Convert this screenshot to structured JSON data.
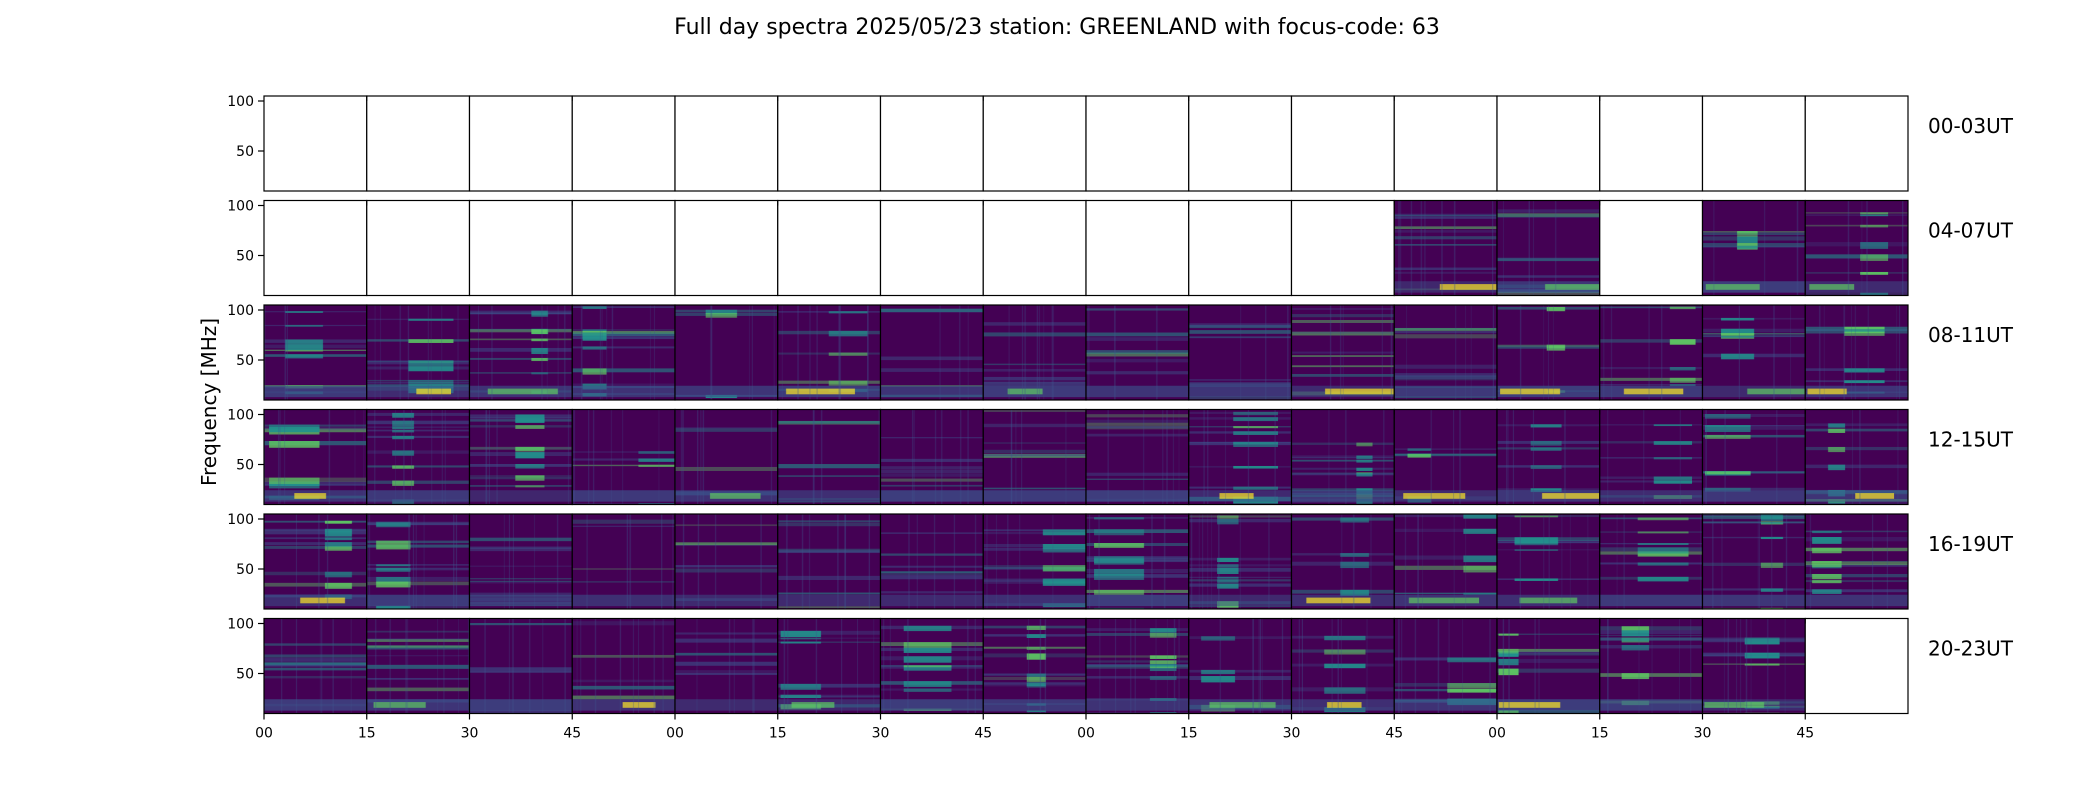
{
  "chart_data": {
    "type": "heatmap",
    "title": "Full day spectra 2025/05/23 station: GREENLAND with focus-code: 63",
    "ylabel": "Frequency [MHz]",
    "y_ticks": [
      50,
      100
    ],
    "ylim": [
      10,
      105
    ],
    "x_tick_labels": [
      "00",
      "15",
      "30",
      "45",
      "00",
      "15",
      "30",
      "45",
      "00",
      "15",
      "30",
      "45",
      "00",
      "15",
      "30",
      "45"
    ],
    "rows": [
      {
        "label": "00-03UT",
        "panels": [
          "empty",
          "empty",
          "empty",
          "empty",
          "empty",
          "empty",
          "empty",
          "empty",
          "empty",
          "empty",
          "empty",
          "empty",
          "empty",
          "empty",
          "empty",
          "empty"
        ]
      },
      {
        "label": "04-07UT",
        "panels": [
          "empty",
          "empty",
          "empty",
          "empty",
          "empty",
          "empty",
          "empty",
          "empty",
          "empty",
          "empty",
          "empty",
          "data",
          "data",
          "empty",
          "data",
          "data"
        ]
      },
      {
        "label": "08-11UT",
        "panels": [
          "data",
          "data",
          "data",
          "data",
          "data",
          "data",
          "data",
          "data",
          "data",
          "data",
          "data",
          "data",
          "data",
          "data",
          "data",
          "data"
        ]
      },
      {
        "label": "12-15UT",
        "panels": [
          "data",
          "data",
          "data",
          "data",
          "data",
          "data",
          "data",
          "data",
          "data",
          "data",
          "data",
          "data",
          "data",
          "data",
          "data",
          "data"
        ]
      },
      {
        "label": "16-19UT",
        "panels": [
          "data",
          "data",
          "data",
          "data",
          "data",
          "data",
          "data",
          "data",
          "data",
          "data",
          "data",
          "data",
          "data",
          "data",
          "data",
          "data"
        ]
      },
      {
        "label": "20-23UT",
        "panels": [
          "data",
          "data",
          "data",
          "data",
          "data",
          "data",
          "data",
          "data",
          "data",
          "data",
          "data",
          "data",
          "data",
          "data",
          "data",
          "empty"
        ]
      }
    ],
    "colormap": [
      "#440154",
      "#3b528b",
      "#21918c",
      "#5ec962",
      "#fde725"
    ]
  }
}
